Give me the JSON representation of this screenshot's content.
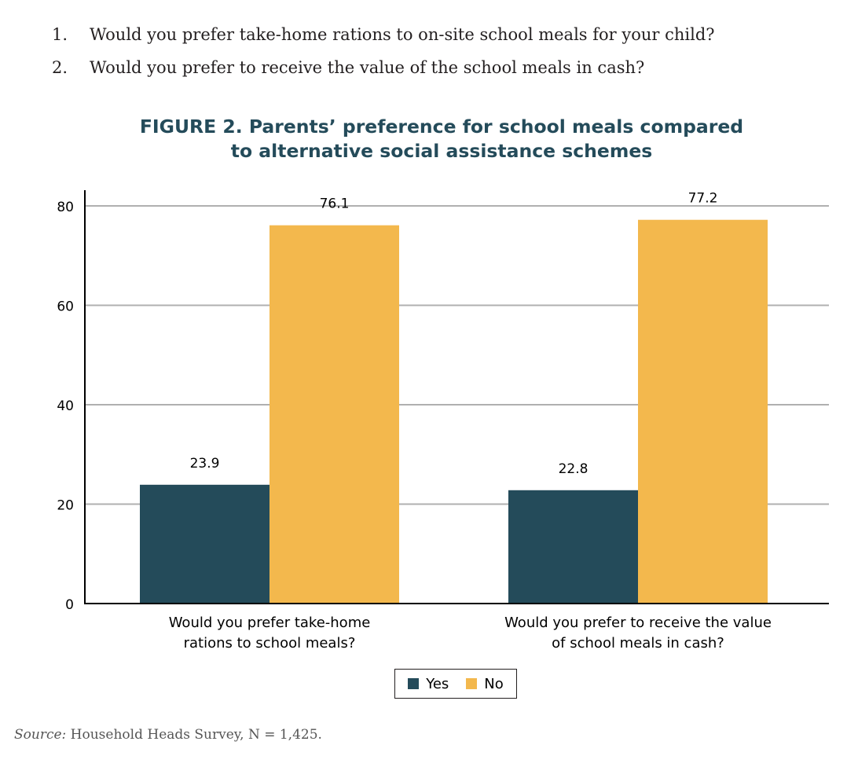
{
  "questions": [
    {
      "number": "1.",
      "text": "Would you prefer take-home rations to on-site school meals for your child?"
    },
    {
      "number": "2.",
      "text": "Would you prefer to receive the value of the school meals in cash?"
    }
  ],
  "figure_title": {
    "line1": "FIGURE 2. Parents’ preference for school meals compared",
    "line2": "to alternative social assistance schemes"
  },
  "chart_data": {
    "type": "bar",
    "title": "FIGURE 2. Parents’ preference for school meals compared to alternative social assistance schemes",
    "categories": [
      [
        "Would you prefer take-home",
        "rations to school meals?"
      ],
      [
        "Would you prefer to receive the value",
        "of school meals in cash?"
      ]
    ],
    "series": [
      {
        "name": "Yes",
        "color": "#244b5a",
        "values": [
          23.9,
          22.8
        ]
      },
      {
        "name": "No",
        "color": "#f3b84d",
        "values": [
          76.1,
          77.2
        ]
      }
    ],
    "data_labels": [
      [
        "23.9",
        "22.8"
      ],
      [
        "76.1",
        "77.2"
      ]
    ],
    "ylim": [
      0,
      83
    ],
    "yticks": [
      0,
      20,
      40,
      60,
      80
    ],
    "grid": true,
    "legend": "bottom-center"
  },
  "legend": [
    {
      "label": "Yes",
      "color": "#244b5a"
    },
    {
      "label": "No",
      "color": "#f3b84d"
    }
  ],
  "source": {
    "label": "Source:",
    "text": " Household Heads Survey, N = 1,425."
  }
}
